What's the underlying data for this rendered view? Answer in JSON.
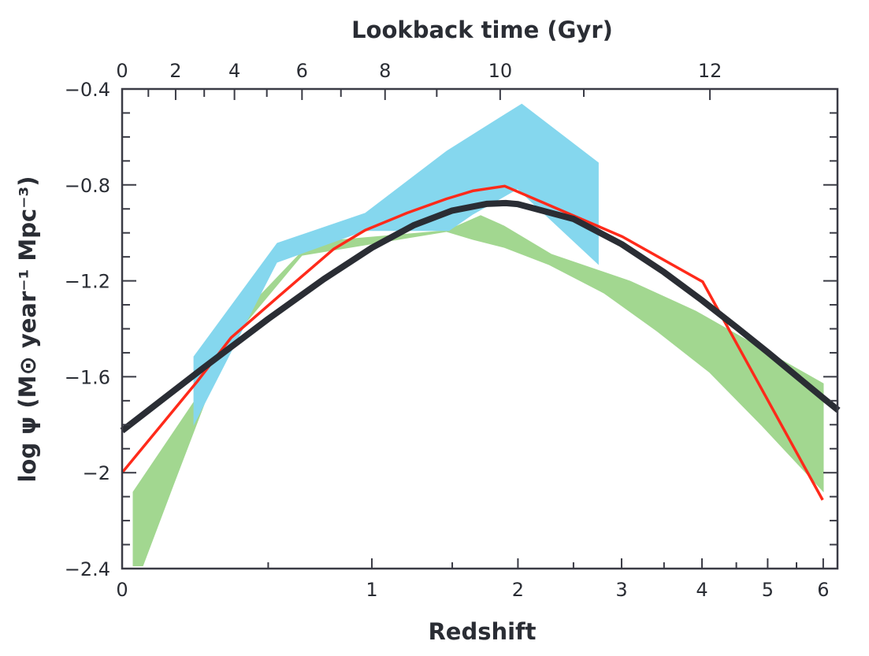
{
  "chart_data": {
    "type": "line",
    "xlabel": "Redshift",
    "x_top_label": "Lookback time (Gyr)",
    "ylabel": "log ψ (M⊙ year⁻¹ Mpc⁻³)",
    "x_scale": "log(1+z)",
    "xlim": [
      0,
      6.3
    ],
    "ylim": [
      -2.4,
      -0.4
    ],
    "x_ticks": [
      0,
      1,
      2,
      3,
      4,
      5,
      6
    ],
    "x_tick_labels": [
      "0",
      "1",
      "2",
      "3",
      "4",
      "5",
      "6"
    ],
    "x_minor_ticks": [
      0.5,
      1.5,
      2.5,
      3.5,
      4.5,
      5.5
    ],
    "y_ticks": [
      -0.4,
      -0.8,
      -1.2,
      -1.6,
      -2.0,
      -2.4
    ],
    "y_tick_labels": [
      "−0.4",
      "−0.8",
      "−1.2",
      "−1.6",
      "−2",
      "−2.4"
    ],
    "top_ticks_gyr": [
      0,
      2,
      4,
      6,
      8,
      10,
      12
    ],
    "top_tick_labels": [
      "0",
      "2",
      "4",
      "6",
      "8",
      "10",
      "12"
    ],
    "top_minor_ticks_gyr": [
      1,
      3,
      5,
      7,
      9,
      11
    ],
    "grid": false,
    "series": [
      {
        "kind": "band",
        "color": "#a2d790",
        "upper": [
          [
            0.03,
            -2.08
          ],
          [
            0.222,
            -1.7
          ],
          [
            0.424,
            -1.305
          ],
          [
            0.648,
            -1.075
          ],
          [
            0.811,
            -1.029
          ],
          [
            1.46,
            -0.989
          ],
          [
            1.705,
            -0.926
          ],
          [
            1.888,
            -0.97
          ],
          [
            2.293,
            -1.088
          ],
          [
            3.098,
            -1.2
          ],
          [
            3.917,
            -1.325
          ],
          [
            6.01,
            -1.628
          ]
        ],
        "lower": [
          [
            0.03,
            -2.39
          ],
          [
            0.06,
            -2.39
          ],
          [
            0.153,
            -2.055
          ],
          [
            0.305,
            -1.568
          ],
          [
            0.404,
            -1.384
          ],
          [
            0.648,
            -1.095
          ],
          [
            1.46,
            -0.996
          ],
          [
            1.646,
            -1.029
          ],
          [
            1.888,
            -1.062
          ],
          [
            2.27,
            -1.134
          ],
          [
            2.81,
            -1.253
          ],
          [
            3.41,
            -1.411
          ],
          [
            4.1,
            -1.582
          ],
          [
            4.9,
            -1.805
          ],
          [
            6.01,
            -2.082
          ]
        ]
      },
      {
        "kind": "band",
        "color": "#85d7ee",
        "upper": [
          [
            0.219,
            -1.516
          ],
          [
            0.537,
            -1.042
          ],
          [
            0.963,
            -0.917
          ],
          [
            1.46,
            -0.658
          ],
          [
            1.705,
            -0.568
          ],
          [
            2.032,
            -0.461
          ],
          [
            2.754,
            -0.707
          ]
        ],
        "lower": [
          [
            0.219,
            -1.805
          ],
          [
            0.537,
            -1.124
          ],
          [
            0.963,
            -0.992
          ],
          [
            1.478,
            -0.992
          ],
          [
            1.646,
            -0.924
          ],
          [
            1.996,
            -0.818
          ],
          [
            2.754,
            -1.134
          ]
        ]
      },
      {
        "kind": "line",
        "color": "#ff2a1a",
        "points": [
          [
            0,
            -2.0
          ],
          [
            0.231,
            -1.621
          ],
          [
            0.353,
            -1.437
          ],
          [
            0.543,
            -1.266
          ],
          [
            0.798,
            -1.068
          ],
          [
            0.963,
            -0.989
          ],
          [
            1.206,
            -0.917
          ],
          [
            1.46,
            -0.858
          ],
          [
            1.646,
            -0.825
          ],
          [
            1.892,
            -0.805
          ],
          [
            3.01,
            -1.016
          ],
          [
            4.01,
            -1.204
          ],
          [
            5.99,
            -2.114
          ]
        ]
      },
      {
        "kind": "line",
        "color": "#2a2d34",
        "points": [
          [
            0,
            -1.825
          ],
          [
            0.25,
            -1.566
          ],
          [
            0.5,
            -1.359
          ],
          [
            0.75,
            -1.193
          ],
          [
            1,
            -1.062
          ],
          [
            1.25,
            -0.967
          ],
          [
            1.5,
            -0.907
          ],
          [
            1.75,
            -0.879
          ],
          [
            1.9,
            -0.876
          ],
          [
            2,
            -0.88
          ],
          [
            2.5,
            -0.942
          ],
          [
            3,
            -1.047
          ],
          [
            3.5,
            -1.164
          ],
          [
            4,
            -1.281
          ],
          [
            4.5,
            -1.393
          ],
          [
            5,
            -1.498
          ],
          [
            5.5,
            -1.597
          ],
          [
            6,
            -1.689
          ],
          [
            6.3,
            -1.74
          ]
        ]
      }
    ]
  }
}
